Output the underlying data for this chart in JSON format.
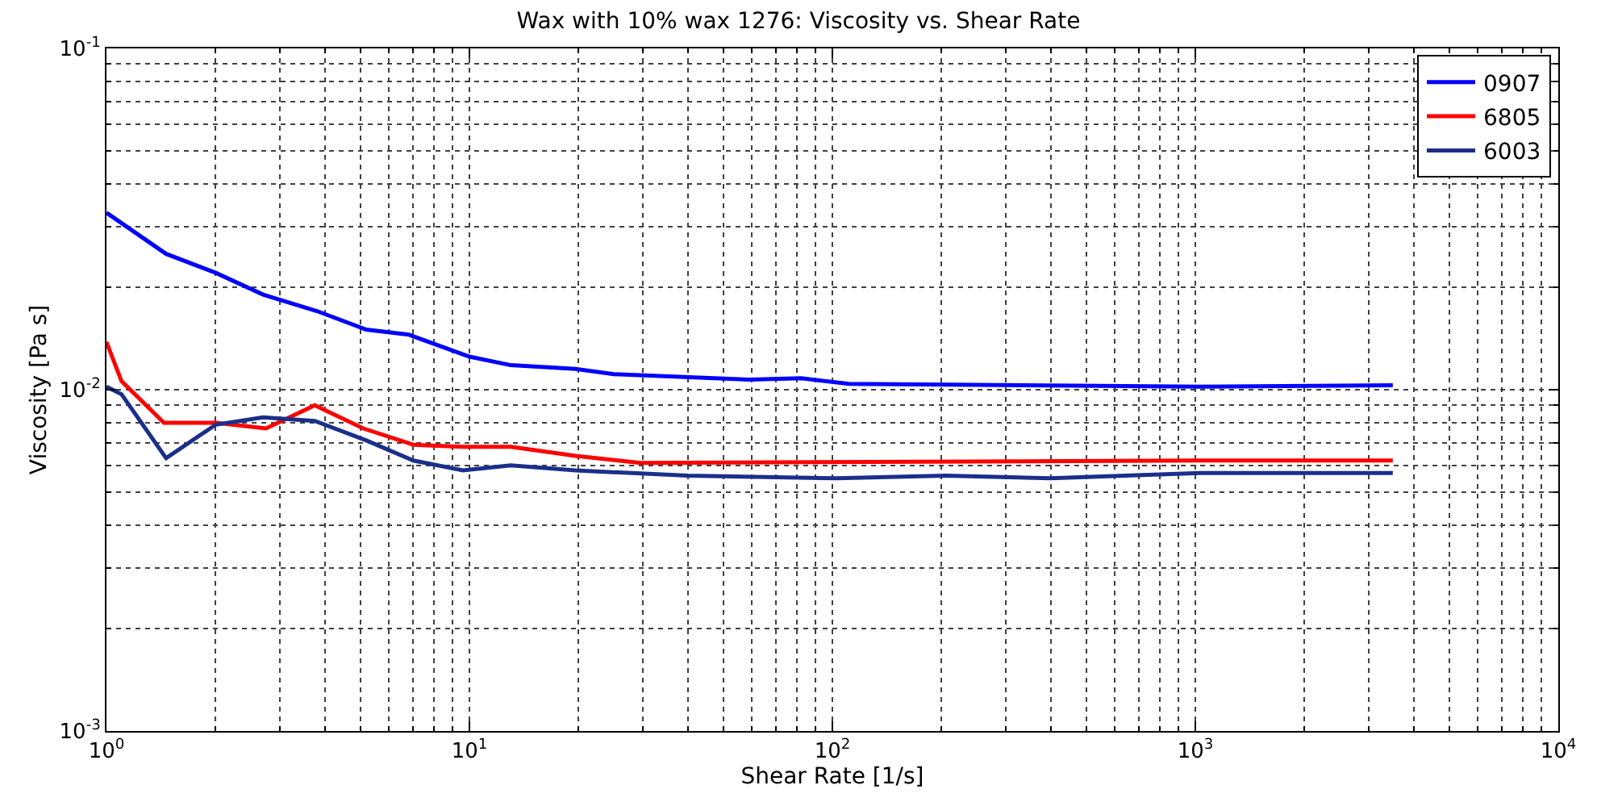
{
  "chart_data": {
    "type": "line",
    "title": "Wax with 10% wax 1276: Viscosity vs. Shear Rate",
    "xlabel": "Shear Rate [1/s]",
    "ylabel": "Viscosity [Pa s]",
    "log": "xy",
    "grid": true,
    "legend": "top right",
    "line_style": "solid",
    "marker": "none",
    "xlim": [
      1,
      10000
    ],
    "ylim": [
      0.001,
      0.1
    ],
    "xticks": [
      {
        "value": 1,
        "label": "10$^{0}$"
      },
      {
        "value": 10,
        "label": "10$^{1}$"
      },
      {
        "value": 100,
        "label": "10$^{2}$"
      },
      {
        "value": 1000,
        "label": "10$^{3}$"
      },
      {
        "value": 10000,
        "label": "10$^{4}$"
      }
    ],
    "yticks": [
      {
        "value": 0.001,
        "label": "10$^{-3}$"
      },
      {
        "value": 0.01,
        "label": "10$^{-2}$"
      },
      {
        "value": 0.1,
        "label": "10$^{-1}$"
      }
    ],
    "series": [
      {
        "name": "0907",
        "color": "#0000ff",
        "x": [
          1,
          1.46,
          2,
          2.7,
          3.8,
          5.2,
          6.8,
          10,
          13,
          19.6,
          25,
          59,
          82,
          111,
          1030,
          3500
        ],
        "values": [
          0.033,
          0.025,
          0.022,
          0.019,
          0.017,
          0.015,
          0.0145,
          0.0125,
          0.0118,
          0.0115,
          0.0111,
          0.0107,
          0.0108,
          0.0104,
          0.0102,
          0.0103
        ]
      },
      {
        "name": "6805",
        "color": "#ff0000",
        "x": [
          1,
          1.1,
          1.44,
          2,
          2.75,
          3.75,
          5.1,
          7,
          9.6,
          13,
          19.6,
          29.6,
          1030,
          3500
        ],
        "values": [
          0.0138,
          0.0106,
          0.008,
          0.008,
          0.0077,
          0.009,
          0.0077,
          0.0069,
          0.0068,
          0.0068,
          0.0064,
          0.0061,
          0.0062,
          0.0062
        ]
      },
      {
        "name": "6003",
        "color": "#1a2f8a",
        "x": [
          1,
          1.1,
          1.46,
          2,
          2.7,
          3.75,
          5.2,
          7,
          9.6,
          13,
          19.6,
          40,
          103,
          205,
          400,
          1030,
          3500
        ],
        "values": [
          0.0102,
          0.0097,
          0.0063,
          0.0079,
          0.0083,
          0.0081,
          0.0071,
          0.0062,
          0.0058,
          0.006,
          0.0058,
          0.0056,
          0.0055,
          0.0056,
          0.0055,
          0.0057,
          0.0057
        ]
      }
    ]
  }
}
